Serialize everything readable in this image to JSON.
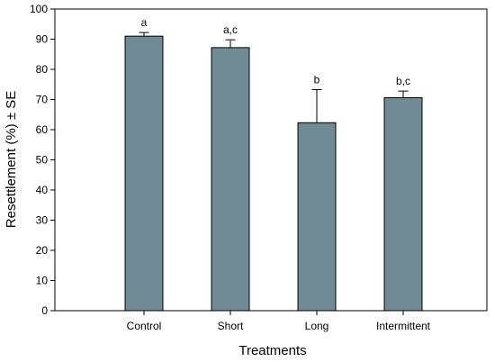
{
  "chart_data": {
    "type": "bar",
    "categories": [
      "Control",
      "Short",
      "Long",
      "Intermittent"
    ],
    "values": [
      91,
      87.2,
      62.3,
      70.6
    ],
    "errors": [
      1.2,
      2.6,
      11.0,
      2.2
    ],
    "significance_labels": [
      "a",
      "a,c",
      "b",
      "b,c"
    ],
    "xlabel": "Treatments",
    "ylabel": "Resettlement (%) ± SE",
    "ylim": [
      0,
      100
    ],
    "yticks": [
      0,
      10,
      20,
      30,
      40,
      50,
      60,
      70,
      80,
      90,
      100
    ],
    "grid": false,
    "legend": "none",
    "bar_color": "#6f8a95",
    "bar_edge_color": "#000000"
  }
}
